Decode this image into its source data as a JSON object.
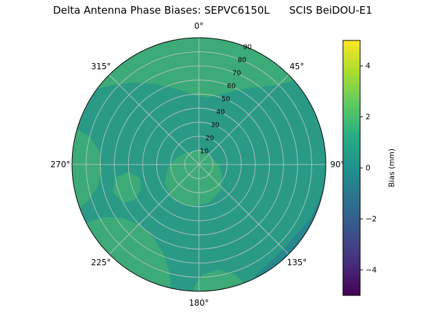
{
  "chart_data": {
    "type": "heatmap",
    "projection": "polar",
    "title": "Delta Antenna Phase Biases: SEPVC6150L      SCIS BeiDOU-E1",
    "angular_ticks": [
      "0°",
      "45°",
      "90°",
      "135°",
      "180°",
      "225°",
      "270°",
      "315°"
    ],
    "angular_direction": "clockwise-from-top",
    "radial_ticks": [
      {
        "value": 10,
        "label": "10"
      },
      {
        "value": 20,
        "label": "20"
      },
      {
        "value": 30,
        "label": "30"
      },
      {
        "value": 40,
        "label": "40"
      },
      {
        "value": 50,
        "label": "50"
      },
      {
        "value": 60,
        "label": "60"
      },
      {
        "value": 70,
        "label": "70"
      },
      {
        "value": 80,
        "label": "80"
      },
      {
        "value": 90,
        "label": "90"
      }
    ],
    "radial_range": [
      0,
      90
    ],
    "grid": true,
    "grid_color": "#c9c9c9",
    "base_value": 0.5,
    "base_color": "#2a9a87",
    "regions": [
      {
        "name": "north-outer-positive-patch",
        "value": 1.2,
        "color": "#3dab77",
        "points": [
          [
            303,
            95
          ],
          [
            312,
            84
          ],
          [
            322,
            74
          ],
          [
            333,
            64
          ],
          [
            345,
            55
          ],
          [
            357,
            49
          ],
          [
            8,
            48
          ],
          [
            19,
            53
          ],
          [
            29,
            61
          ],
          [
            38,
            70
          ],
          [
            45,
            80
          ],
          [
            50,
            95
          ],
          [
            25,
            100
          ],
          [
            0,
            101
          ],
          [
            335,
            101
          ],
          [
            312,
            100
          ]
        ]
      },
      {
        "name": "west-edge-positive-patch",
        "value": 1.2,
        "color": "#3dab77",
        "points": [
          [
            249,
            95
          ],
          [
            252,
            82
          ],
          [
            258,
            73
          ],
          [
            267,
            69
          ],
          [
            277,
            71
          ],
          [
            284,
            79
          ],
          [
            287,
            95
          ],
          [
            270,
            100
          ],
          [
            256,
            100
          ]
        ]
      },
      {
        "name": "southwest-outer-positive-patch",
        "value": 1.2,
        "color": "#3dab77",
        "points": [
          [
            192,
            95
          ],
          [
            195,
            80
          ],
          [
            202,
            68
          ],
          [
            212,
            61
          ],
          [
            224,
            60
          ],
          [
            235,
            66
          ],
          [
            241,
            77
          ],
          [
            243,
            95
          ],
          [
            220,
            101
          ],
          [
            200,
            100
          ]
        ]
      },
      {
        "name": "south-outer-positive-patch",
        "value": 1.2,
        "color": "#3dab77",
        "points": [
          [
            158,
            95
          ],
          [
            162,
            82
          ],
          [
            170,
            76
          ],
          [
            178,
            78
          ],
          [
            182,
            86
          ],
          [
            183,
            95
          ],
          [
            170,
            100
          ]
        ]
      },
      {
        "name": "zenith-center-positive-patch",
        "value": 1.2,
        "color": "#3dab77",
        "points": [
          [
            0,
            11
          ],
          [
            30,
            9
          ],
          [
            60,
            10
          ],
          [
            90,
            14
          ],
          [
            115,
            18
          ],
          [
            140,
            24
          ],
          [
            165,
            28
          ],
          [
            190,
            30
          ],
          [
            215,
            31
          ],
          [
            240,
            28
          ],
          [
            265,
            22
          ],
          [
            290,
            16
          ],
          [
            315,
            12
          ],
          [
            340,
            10
          ]
        ]
      },
      {
        "name": "west-mid-positive-patch",
        "value": 1.2,
        "color": "#3dab77",
        "points": [
          [
            243,
            60
          ],
          [
            252,
            64
          ],
          [
            261,
            60
          ],
          [
            264,
            50
          ],
          [
            257,
            43
          ],
          [
            247,
            45
          ],
          [
            241,
            52
          ]
        ]
      },
      {
        "name": "southeast-negative-patch",
        "value": -0.3,
        "color": "#27868e",
        "points": [
          [
            96,
            92
          ],
          [
            115,
            88
          ],
          [
            135,
            85
          ],
          [
            152,
            88
          ],
          [
            162,
            95
          ],
          [
            150,
            100
          ],
          [
            120,
            101
          ],
          [
            100,
            99
          ]
        ]
      }
    ],
    "colorbar": {
      "label": "Bias (mm)",
      "min": -5,
      "max": 5,
      "ticks": [
        {
          "value": 4,
          "label": "4"
        },
        {
          "value": 2,
          "label": "2"
        },
        {
          "value": 0,
          "label": "0"
        },
        {
          "value": -2,
          "label": "−2"
        },
        {
          "value": -4,
          "label": "−4"
        }
      ],
      "gradient": [
        [
          0,
          "#440154"
        ],
        [
          0.125,
          "#472d7b"
        ],
        [
          0.25,
          "#3b528b"
        ],
        [
          0.375,
          "#2c728e"
        ],
        [
          0.5,
          "#21918c"
        ],
        [
          0.625,
          "#27ad81"
        ],
        [
          0.75,
          "#5ec962"
        ],
        [
          0.875,
          "#aadc32"
        ],
        [
          1,
          "#fde725"
        ]
      ],
      "position": "right"
    }
  }
}
